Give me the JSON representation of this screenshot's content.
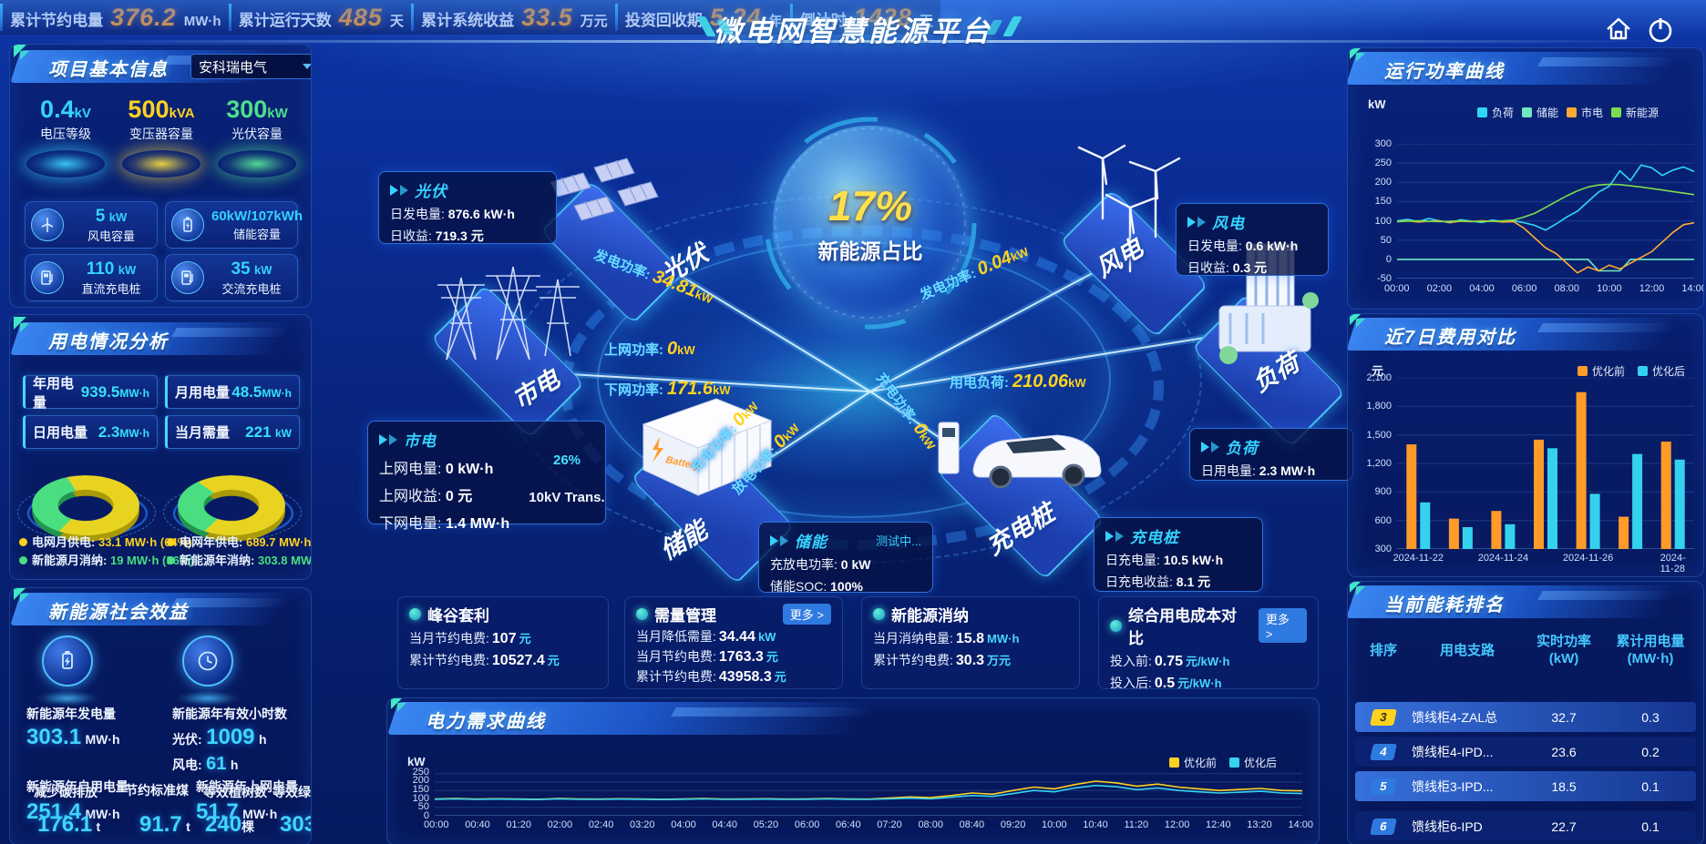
{
  "header": {
    "title": "微电网智慧能源平台"
  },
  "kpi_bar": {
    "items": [
      {
        "label": "累计节约电量",
        "value": "376.2",
        "unit": "MW·h"
      },
      {
        "label": "累计运行天数",
        "value": "485",
        "unit": "天"
      },
      {
        "label": "累计系统收益",
        "value": "33.5",
        "unit": "万元"
      },
      {
        "label": "投资回收期",
        "value": "5.24",
        "unit": "年"
      },
      {
        "label": "倒计时",
        "value": "1428",
        "unit": "天"
      }
    ]
  },
  "project_panel": {
    "title": "项目基本信息",
    "company": "安科瑞电气",
    "spotlights": [
      {
        "value": "0.4",
        "unit": "kV",
        "label": "电压等级",
        "color": "#35d2ff"
      },
      {
        "value": "500",
        "unit": "kVA",
        "label": "变压器容量",
        "color": "#ffd21f"
      },
      {
        "value": "300",
        "unit": "kW",
        "label": "光伏容量",
        "color": "#4ce08a"
      }
    ],
    "capacities": [
      {
        "value": "5",
        "unit": "kW",
        "label": "风电容量",
        "icon": "wind-turbine-icon"
      },
      {
        "value": "60kW/107kWh",
        "unit": "",
        "label": "储能容量",
        "icon": "battery-icon"
      },
      {
        "value": "110",
        "unit": "kW",
        "label": "直流充电桩",
        "icon": "dc-charger-icon"
      },
      {
        "value": "35",
        "unit": "kW",
        "label": "交流充电桩",
        "icon": "ac-charger-icon"
      }
    ]
  },
  "usage_panel": {
    "title": "用电情况分析",
    "stats": [
      {
        "label": "年用电量",
        "value": "939.5",
        "unit": "MW·h"
      },
      {
        "label": "月用电量",
        "value": "48.5",
        "unit": "MW·h"
      },
      {
        "label": "日用电量",
        "value": "2.3",
        "unit": "MW·h"
      },
      {
        "label": "当月需量",
        "value": "221",
        "unit": "kW"
      }
    ],
    "legends": [
      {
        "label": "电网月供电:",
        "value": "33.1 MW·h (64%)",
        "color": "#ffd21f"
      },
      {
        "label": "新能源月消纳:",
        "value": "19 MW·h (36%)",
        "color": "#4ade80"
      },
      {
        "label": "电网年供电:",
        "value": "689.7 MW·h (69%)",
        "color": "#ffd21f"
      },
      {
        "label": "新能源年消纳:",
        "value": "303.8 MW·h (31%)",
        "color": "#4ade80"
      }
    ]
  },
  "benefit_panel": {
    "title": "新能源社会效益",
    "gen": {
      "label": "新能源年发电量",
      "value": "303.1",
      "unit": "MW·h"
    },
    "hours": {
      "label": "新能源年有效小时数",
      "pv_label": "光伏:",
      "pv_value": "1009",
      "pv_unit": "h",
      "wind_label": "风电:",
      "wind_value": "61",
      "wind_unit": "h"
    },
    "self_use": {
      "label": "新能源年自用电量",
      "value": "251.4",
      "unit": "MW·h"
    },
    "carbon": {
      "label": "减少碳排放",
      "value": "176.1",
      "unit": "t"
    },
    "coal": {
      "label": "节约标准煤",
      "value": "91.7",
      "unit": "t"
    },
    "to_grid": {
      "label": "新能源年上网电量",
      "value": "51.7",
      "unit": "MW·h"
    },
    "trees": {
      "label": "等效植树数",
      "value": "240",
      "unit": "棵"
    },
    "certs": {
      "label": "等效绿证数",
      "value": "303",
      "unit": "张"
    }
  },
  "scene": {
    "center": {
      "value": "17%",
      "label": "新能源占比"
    },
    "gauge": {
      "value": "26%",
      "percent": 26,
      "label": "10kV Trans."
    },
    "nodes": {
      "pv": "光伏",
      "wind": "风电",
      "grid": "市电",
      "storage": "储能",
      "charger": "充电桩",
      "load": "负荷",
      "storage_box": "Battery"
    },
    "callouts": {
      "pv": {
        "title": "光伏",
        "rows": [
          {
            "label": "日发电量:",
            "value": "876.6 kW·h"
          },
          {
            "label": "日收益:",
            "value": "719.3 元"
          }
        ]
      },
      "wind": {
        "title": "风电",
        "rows": [
          {
            "label": "日发电量:",
            "value": "0.6 kW·h"
          },
          {
            "label": "日收益:",
            "value": "0.3 元"
          }
        ]
      },
      "grid": {
        "title": "市电",
        "rows": [
          {
            "label": "上网电量:",
            "value": "0 kW·h"
          },
          {
            "label": "上网收益:",
            "value": "0 元"
          },
          {
            "label": "下网电量:",
            "value": "1.4 MW·h"
          }
        ]
      },
      "storage": {
        "title": "储能",
        "badge": "测试中...",
        "rows": [
          {
            "label": "充放电功率:",
            "value": "0 kW"
          },
          {
            "label": "储能SOC:",
            "value": "100%"
          }
        ]
      },
      "charger": {
        "title": "充电桩",
        "rows": [
          {
            "label": "日充电量:",
            "value": "10.5 kW·h"
          },
          {
            "label": "日充电收益:",
            "value": "8.1 元"
          }
        ]
      },
      "load": {
        "title": "负荷",
        "rows": [
          {
            "label": "日用电量:",
            "value": "2.3 MW·h"
          }
        ]
      }
    },
    "flows": {
      "pv_gen": {
        "label": "发电功率:",
        "value": "34.81",
        "unit": "kW"
      },
      "wind_gen": {
        "label": "发电功率:",
        "value": "0.04",
        "unit": "kW"
      },
      "grid_up": {
        "label": "上网功率:",
        "value": "0",
        "unit": "kW"
      },
      "grid_down": {
        "label": "下网功率:",
        "value": "171.6",
        "unit": "kW"
      },
      "load_power": {
        "label": "用电负荷:",
        "value": "210.06",
        "unit": "kW"
      },
      "storage_charge": {
        "label": "充电功率:",
        "value": "0",
        "unit": "kW"
      },
      "storage_discharge": {
        "label": "放电功率:",
        "value": "0",
        "unit": "kW"
      },
      "charger_charge": {
        "label": "充电功率:",
        "value": "0",
        "unit": "kW"
      }
    }
  },
  "bottom_panels": {
    "fg": {
      "title": "峰谷套利",
      "rows": [
        {
          "label": "当月节约电费:",
          "value": "107",
          "unit": "元"
        },
        {
          "label": "累计节约电费:",
          "value": "10527.4",
          "unit": "元"
        }
      ]
    },
    "dm": {
      "title": "需量管理",
      "more": "更多 >",
      "rows": [
        {
          "label": "当月降低需量:",
          "value": "34.44",
          "unit": "kW"
        },
        {
          "label": "当月节约电费:",
          "value": "1763.3",
          "unit": "元"
        },
        {
          "label": "累计节约电费:",
          "value": "43958.3",
          "unit": "元"
        }
      ]
    },
    "xn": {
      "title": "新能源消纳",
      "rows": [
        {
          "label": "当月消纳电量:",
          "value": "15.8",
          "unit": "MW·h"
        },
        {
          "label": "累计节约电费:",
          "value": "30.3",
          "unit": "万元"
        }
      ]
    },
    "cost": {
      "title": "综合用电成本对比",
      "more": "更多 >",
      "rows": [
        {
          "label": "投入前:",
          "value": "0.75",
          "unit": "元/kW·h"
        },
        {
          "label": "投入后:",
          "value": "0.5",
          "unit": "元/kW·h"
        }
      ]
    }
  },
  "demand_panel": {
    "title": "电力需求曲线",
    "unit": "kW"
  },
  "right_panels": {
    "run": {
      "title": "运行功率曲线",
      "unit": "kW"
    },
    "cost": {
      "title": "近7日费用对比",
      "unit": "元"
    }
  },
  "ranking": {
    "title": "当前能耗排名",
    "headers": [
      {
        "l1": "排序",
        "l2": ""
      },
      {
        "l1": "用电支路",
        "l2": ""
      },
      {
        "l1": "实时功率",
        "l2": "(kW)"
      },
      {
        "l1": "累计用电量",
        "l2": "(MW·h)"
      }
    ],
    "rows": [
      {
        "rank": "3",
        "name": "馈线柜4-ZAL总",
        "power": "32.7",
        "energy": "0.3"
      },
      {
        "rank": "4",
        "name": "馈线柜4-IPD...",
        "power": "23.6",
        "energy": "0.2"
      },
      {
        "rank": "5",
        "name": "馈线柜3-IPD...",
        "power": "18.5",
        "energy": "0.1"
      },
      {
        "rank": "6",
        "name": "馈线柜6-IPD",
        "power": "22.7",
        "energy": "0.1"
      }
    ]
  },
  "chart_data": [
    {
      "id": "run-power",
      "type": "line",
      "title": "运行功率曲线",
      "ylabel": "kW",
      "x_labels": [
        "00:00",
        "02:00",
        "04:00",
        "06:00",
        "08:00",
        "10:00",
        "12:00",
        "14:00"
      ],
      "ylim": [
        -50,
        300
      ],
      "yticks": [
        300,
        250,
        200,
        150,
        100,
        50,
        0,
        -50
      ],
      "grid": true,
      "legend_position": "top-right",
      "series": [
        {
          "name": "负荷",
          "color": "#2fd8f2",
          "values": [
            100,
            104,
            98,
            106,
            100,
            95,
            103,
            99,
            96,
            102,
            98,
            100,
            95,
            88,
            76,
            92,
            110,
            125,
            150,
            175,
            190,
            230,
            205,
            245,
            238,
            218,
            232,
            240,
            228
          ]
        },
        {
          "name": "储能",
          "color": "#6fe8c0",
          "values": [
            0,
            0,
            0,
            0,
            0,
            0,
            0,
            0,
            0,
            0,
            0,
            0,
            0,
            0,
            0,
            0,
            0,
            0,
            0,
            -30,
            -30,
            -30,
            0,
            0,
            0,
            0,
            0,
            0,
            0
          ]
        },
        {
          "name": "市电",
          "color": "#ffaa33",
          "values": [
            98,
            100,
            97,
            99,
            100,
            96,
            99,
            98,
            100,
            99,
            97,
            98,
            80,
            55,
            30,
            15,
            -10,
            -35,
            -20,
            -30,
            -15,
            -25,
            -10,
            5,
            20,
            45,
            70,
            90,
            95
          ]
        },
        {
          "name": "新能源",
          "color": "#7ddc4f",
          "values": [
            98,
            99,
            100,
            99,
            98,
            99,
            100,
            99,
            98,
            99,
            100,
            102,
            110,
            120,
            135,
            150,
            165,
            178,
            188,
            193,
            195,
            194,
            191,
            188,
            184,
            180,
            176,
            172,
            168
          ]
        }
      ]
    },
    {
      "id": "cost-7day",
      "type": "bar",
      "title": "近7日费用对比",
      "ylabel": "元",
      "categories": [
        "2024-11-22",
        "2024-11-23",
        "2024-11-24",
        "2024-11-25",
        "2024-11-26",
        "2024-11-27",
        "2024-11-28"
      ],
      "x_labels_shown": [
        "2024-11-22",
        "2024-11-24",
        "2024-11-26",
        "2024-11-28"
      ],
      "ylim": [
        300,
        2100
      ],
      "yticks": [
        2100,
        1800,
        1500,
        1200,
        900,
        600,
        300
      ],
      "ytick_labels": [
        "2,100",
        "1,800",
        "1,500",
        "1,200",
        "900",
        "600",
        "300"
      ],
      "grid": true,
      "legend_position": "top-right",
      "series": [
        {
          "name": "优化前",
          "color": "#ff9b28",
          "values": [
            1400,
            620,
            700,
            1450,
            1950,
            640,
            1430
          ]
        },
        {
          "name": "优化后",
          "color": "#35d2f0",
          "values": [
            790,
            530,
            560,
            1360,
            880,
            1300,
            1240
          ]
        }
      ]
    },
    {
      "id": "power-demand",
      "type": "line",
      "title": "电力需求曲线",
      "ylabel": "kW",
      "x_labels": [
        "00:00",
        "00:40",
        "01:20",
        "02:00",
        "02:40",
        "03:20",
        "04:00",
        "04:40",
        "05:20",
        "06:00",
        "06:40",
        "07:20",
        "08:00",
        "08:40",
        "09:20",
        "10:00",
        "10:40",
        "11:20",
        "12:00",
        "12:40",
        "13:20",
        "14:00"
      ],
      "ylim": [
        0,
        270
      ],
      "yticks": [
        250,
        200,
        150,
        100,
        50,
        0
      ],
      "grid": true,
      "legend_position": "top-right",
      "series": [
        {
          "name": "优化前",
          "color": "#ffd21f",
          "values": [
            100,
            102,
            99,
            101,
            100,
            98,
            102,
            100,
            99,
            101,
            100,
            98,
            100,
            102,
            99,
            100,
            101,
            99,
            100,
            102,
            100,
            99,
            105,
            112,
            108,
            120,
            135,
            128,
            150,
            170,
            160,
            185,
            205,
            195,
            175,
            188,
            170,
            160,
            150,
            156,
            162,
            150,
            148
          ]
        },
        {
          "name": "优化后",
          "color": "#35d2f0",
          "values": [
            98,
            100,
            97,
            99,
            98,
            96,
            100,
            98,
            97,
            99,
            98,
            96,
            98,
            100,
            97,
            98,
            99,
            97,
            98,
            100,
            98,
            97,
            100,
            105,
            100,
            110,
            120,
            115,
            132,
            150,
            142,
            165,
            180,
            172,
            155,
            165,
            150,
            142,
            135,
            140,
            145,
            135,
            132
          ]
        }
      ]
    },
    {
      "id": "monthly-energy-mix",
      "type": "pie",
      "slices": [
        {
          "label": "电网月供电",
          "value": 64,
          "color": "#e8d420",
          "color_dark": "#a99a08",
          "text": "33.1 MW·h (64%)"
        },
        {
          "label": "新能源月消纳",
          "value": 36,
          "color": "#4ade80",
          "color_dark": "#23944e",
          "text": "19 MW·h (36%)"
        }
      ]
    },
    {
      "id": "yearly-energy-mix",
      "type": "pie",
      "slices": [
        {
          "label": "电网年供电",
          "value": 69,
          "color": "#e8d420",
          "color_dark": "#a99a08",
          "text": "689.7 MW·h (69%)"
        },
        {
          "label": "新能源年消纳",
          "value": 31,
          "color": "#4ade80",
          "color_dark": "#23944e",
          "text": "303.8 MW·h (31%)"
        }
      ]
    }
  ]
}
